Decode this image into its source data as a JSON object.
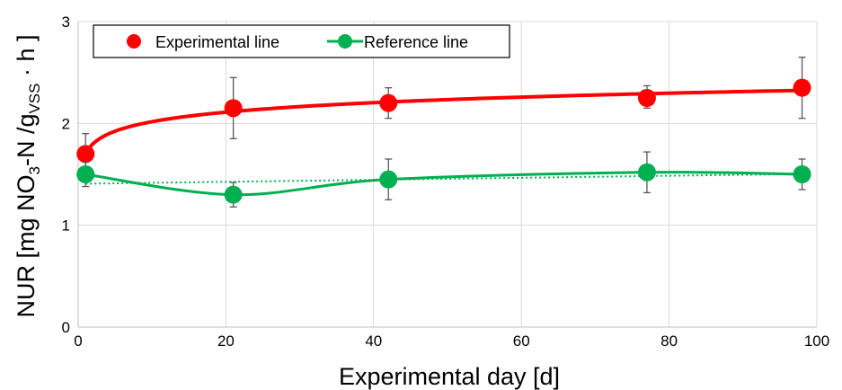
{
  "chart_data": {
    "type": "scatter",
    "title": "",
    "xlabel": "Experimental  day [d]",
    "ylabel": {
      "prefix": "NUR [mg NO",
      "sub1": "3",
      "mid": "-N /g",
      "sub2": "VSS",
      "suffix": " · h ]"
    },
    "xlim": [
      0,
      100
    ],
    "ylim": [
      0,
      3
    ],
    "xticks": [
      "0",
      "20",
      "40",
      "60",
      "80",
      "100"
    ],
    "yticks": [
      "0",
      "1",
      "2",
      "3"
    ],
    "grid": true,
    "legend_position": "top-left",
    "series": [
      {
        "name": "Experimental line",
        "color": "#ff0000",
        "x": [
          1,
          21,
          42,
          77,
          98
        ],
        "y": [
          1.7,
          2.15,
          2.2,
          2.25,
          2.35
        ],
        "err_low": [
          1.55,
          1.85,
          2.05,
          2.15,
          2.05
        ],
        "err_high": [
          1.9,
          2.45,
          2.35,
          2.37,
          2.65
        ],
        "line": "trend-log-solid"
      },
      {
        "name": "Reference line",
        "color": "#00b050",
        "x": [
          1,
          21,
          42,
          77,
          98
        ],
        "y": [
          1.5,
          1.3,
          1.45,
          1.52,
          1.5
        ],
        "err_low": [
          1.38,
          1.18,
          1.25,
          1.32,
          1.35
        ],
        "err_high": [
          1.62,
          1.42,
          1.65,
          1.72,
          1.65
        ],
        "line": "smooth-solid-with-dotted-trend"
      }
    ]
  }
}
